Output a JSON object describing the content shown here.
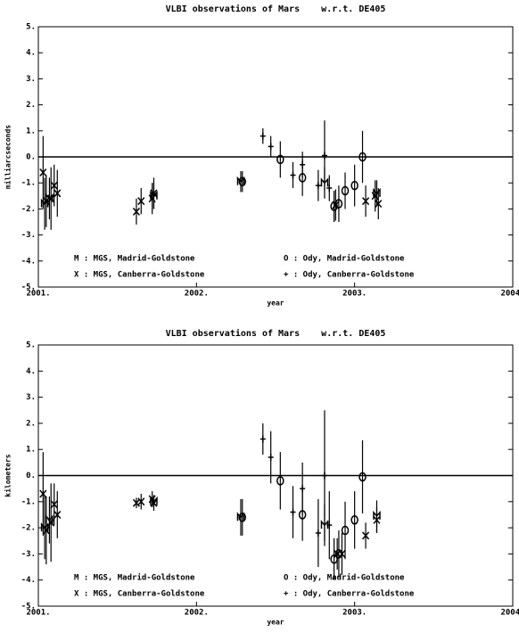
{
  "chart_data": [
    {
      "type": "errorbar",
      "title": "VLBI observations of Mars    w.r.t. DE405",
      "xlabel": "year",
      "ylabel": "milliarcseconds",
      "xlim": [
        2001,
        2004
      ],
      "xticks": [
        {
          "value": 2001,
          "label": "2001."
        },
        {
          "value": 2002,
          "label": "2002."
        },
        {
          "value": 2003,
          "label": "2003."
        },
        {
          "value": 2004,
          "label": "2004."
        }
      ],
      "ylim": [
        -5,
        5
      ],
      "yticks": [
        {
          "value": 5,
          "label": "5."
        },
        {
          "value": 4,
          "label": "4."
        },
        {
          "value": 3,
          "label": "3."
        },
        {
          "value": 2,
          "label": "2."
        },
        {
          "value": 1,
          "label": "1."
        },
        {
          "value": 0,
          "label": "0."
        },
        {
          "value": -1,
          "label": "-1."
        },
        {
          "value": -2,
          "label": "-2."
        },
        {
          "value": -3,
          "label": "-3."
        },
        {
          "value": -4,
          "label": "-4."
        },
        {
          "value": -5,
          "label": "-5."
        }
      ],
      "hline": 0,
      "legend": "lower center",
      "series": [
        {
          "name": "M : MGS, Madrid-Goldstone",
          "marker": "M",
          "color": "#000000",
          "x": [
            2001.04,
            2001.07,
            2001.73,
            2002.28,
            2002.81,
            2003.14
          ],
          "values": [
            -1.8,
            -1.6,
            -1.5,
            -0.95,
            -1.0,
            -1.4
          ],
          "errors": [
            1.0,
            0.8,
            0.5,
            0.4,
            0.6,
            0.5
          ]
        },
        {
          "name": "O : Ody, Madrid-Goldstone",
          "marker": "O",
          "color": "#000000",
          "x": [
            2002.29,
            2002.53,
            2002.67,
            2002.87,
            2002.9,
            2002.94,
            2003.0,
            2003.05
          ],
          "values": [
            -0.95,
            -0.1,
            -0.8,
            -1.9,
            -1.8,
            -1.3,
            -1.1,
            0.0
          ],
          "errors": [
            0.4,
            0.7,
            0.7,
            0.6,
            0.7,
            0.7,
            0.8,
            1.0
          ]
        },
        {
          "name": "X : MGS, Canberra-Goldstone",
          "marker": "X",
          "color": "#000000",
          "x": [
            2001.03,
            2001.05,
            2001.08,
            2001.1,
            2001.12,
            2001.62,
            2001.65,
            2001.72,
            2001.73,
            2002.88,
            2003.07,
            2003.13,
            2003.15
          ],
          "values": [
            -0.6,
            -1.7,
            -1.6,
            -1.1,
            -1.4,
            -2.1,
            -1.7,
            -1.6,
            -1.4,
            -1.85,
            -1.7,
            -1.5,
            -1.8
          ],
          "errors": [
            1.4,
            1.0,
            1.2,
            0.8,
            0.9,
            0.5,
            0.5,
            0.6,
            0.6,
            0.6,
            0.6,
            0.6,
            0.6
          ]
        },
        {
          "name": "+ : Ody, Canberra-Goldstone",
          "marker": "+",
          "color": "#000000",
          "x": [
            2002.42,
            2002.47,
            2002.61,
            2002.67,
            2002.77,
            2002.81,
            2002.84
          ],
          "values": [
            0.8,
            0.4,
            -0.7,
            -0.3,
            -1.1,
            0.05,
            -1.2
          ],
          "errors": [
            0.3,
            0.4,
            0.5,
            0.5,
            0.6,
            1.35,
            0.5
          ]
        }
      ]
    },
    {
      "type": "errorbar",
      "title": "VLBI observations of Mars    w.r.t. DE405",
      "xlabel": "year",
      "ylabel": "kilometers",
      "xlim": [
        2001,
        2004
      ],
      "xticks": [
        {
          "value": 2001,
          "label": "2001."
        },
        {
          "value": 2002,
          "label": "2002."
        },
        {
          "value": 2003,
          "label": "2003."
        },
        {
          "value": 2004,
          "label": "2004."
        }
      ],
      "ylim": [
        -5,
        5
      ],
      "yticks": [
        {
          "value": 5,
          "label": "5."
        },
        {
          "value": 4,
          "label": "4."
        },
        {
          "value": 3,
          "label": "3."
        },
        {
          "value": 2,
          "label": "2."
        },
        {
          "value": 1,
          "label": "1."
        },
        {
          "value": 0,
          "label": "0."
        },
        {
          "value": -1,
          "label": "-1."
        },
        {
          "value": -2,
          "label": "-2."
        },
        {
          "value": -3,
          "label": "-3."
        },
        {
          "value": -4,
          "label": "-4."
        },
        {
          "value": -5,
          "label": "-5."
        }
      ],
      "hline": 0,
      "legend": "lower center",
      "series": [
        {
          "name": "M : MGS, Madrid-Goldstone",
          "marker": "M",
          "color": "#000000",
          "x": [
            2001.04,
            2001.07,
            2001.73,
            2002.28,
            2002.81,
            2003.14
          ],
          "values": [
            -2.0,
            -1.7,
            -1.0,
            -1.6,
            -1.9,
            -1.55
          ],
          "errors": [
            1.2,
            0.9,
            0.2,
            0.7,
            0.8,
            0.6
          ]
        },
        {
          "name": "O : Ody, Madrid-Goldstone",
          "marker": "O",
          "color": "#000000",
          "x": [
            2002.29,
            2002.53,
            2002.67,
            2002.87,
            2002.9,
            2002.94,
            2003.0,
            2003.05
          ],
          "values": [
            -1.6,
            -0.2,
            -1.5,
            -3.2,
            -3.0,
            -2.1,
            -1.7,
            -0.05
          ],
          "errors": [
            0.7,
            1.1,
            1.0,
            0.8,
            0.9,
            1.1,
            1.1,
            1.4
          ]
        },
        {
          "name": "X : MGS, Canberra-Goldstone",
          "marker": "X",
          "color": "#000000",
          "x": [
            2001.03,
            2001.05,
            2001.08,
            2001.1,
            2001.12,
            2001.62,
            2001.65,
            2001.72,
            2001.73,
            2002.89,
            2002.92,
            2003.07,
            2003.14
          ],
          "values": [
            -0.7,
            -2.1,
            -1.8,
            -1.1,
            -1.5,
            -1.05,
            -1.0,
            -0.9,
            -1.05,
            -3.0,
            -3.0,
            -2.3,
            -1.7
          ],
          "errors": [
            1.6,
            1.3,
            1.5,
            0.8,
            0.9,
            0.2,
            0.3,
            0.3,
            0.3,
            0.6,
            0.8,
            0.5,
            0.5
          ]
        },
        {
          "name": "+ : Ody, Canberra-Goldstone",
          "marker": "+",
          "color": "#000000",
          "x": [
            2002.42,
            2002.47,
            2002.61,
            2002.67,
            2002.77,
            2002.81,
            2002.84
          ],
          "values": [
            1.4,
            0.7,
            -1.4,
            -0.5,
            -2.2,
            0.0,
            -1.9
          ],
          "errors": [
            0.6,
            1.0,
            1.0,
            1.0,
            1.3,
            2.5,
            1.3
          ]
        }
      ]
    }
  ]
}
